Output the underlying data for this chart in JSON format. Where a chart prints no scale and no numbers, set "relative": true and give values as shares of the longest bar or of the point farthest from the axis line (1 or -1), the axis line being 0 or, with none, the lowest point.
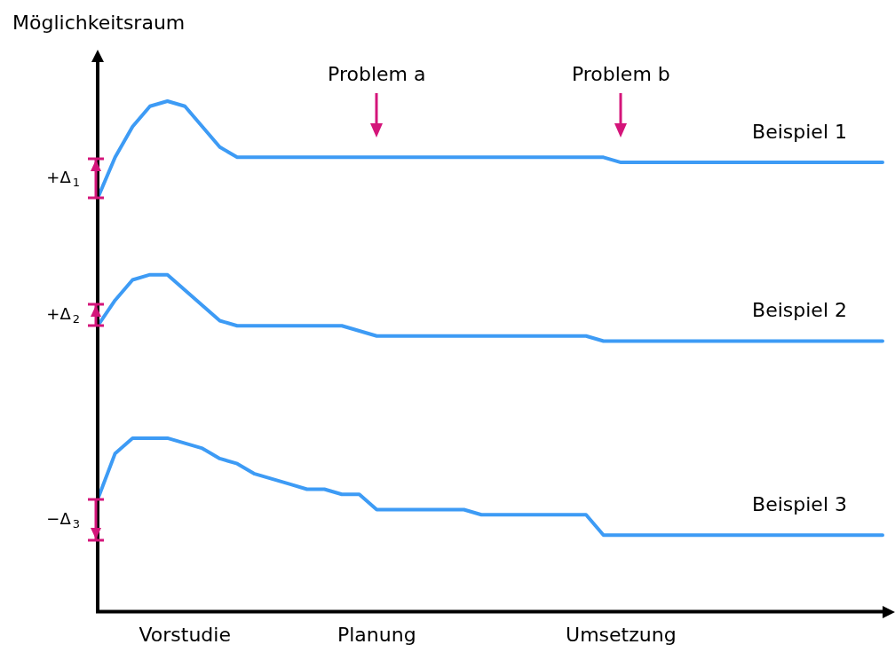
{
  "chart_data": {
    "type": "line",
    "relative": true,
    "ylabel": "Möglichkeitsraum",
    "categories": [
      null,
      null,
      null,
      null,
      null,
      "Vorstudie",
      null,
      null,
      null,
      null,
      null,
      null,
      null,
      null,
      null,
      null,
      "Planung",
      null,
      null,
      null,
      null,
      null,
      null,
      null,
      null,
      null,
      null,
      null,
      null,
      null,
      "Umsetzung",
      null,
      null,
      null,
      null,
      null,
      null,
      null,
      null,
      null,
      null,
      null,
      null,
      null,
      null,
      null
    ],
    "tick_labels": "x",
    "marker": "none",
    "line_style": "solid",
    "series": [
      {
        "name": "Beispiel 1",
        "color": "#3d9bf5",
        "values": [
          0.81,
          0.89,
          0.95,
          0.99,
          1,
          0.99,
          0.95,
          0.91,
          0.89,
          0.89,
          0.89,
          0.89,
          0.89,
          0.89,
          0.89,
          0.89,
          0.89,
          0.89,
          0.89,
          0.89,
          0.89,
          0.89,
          0.89,
          0.89,
          0.89,
          0.89,
          0.89,
          0.89,
          0.89,
          0.89,
          0.88,
          0.88,
          0.88,
          0.88,
          0.88,
          0.88,
          0.88,
          0.88,
          0.88,
          0.88,
          0.88,
          0.88,
          0.88,
          0.88,
          0.88,
          0.88
        ]
      },
      {
        "name": "Beispiel 2",
        "color": "#3d9bf5",
        "values": [
          0.56,
          0.61,
          0.65,
          0.66,
          0.66,
          0.63,
          0.6,
          0.57,
          0.56,
          0.56,
          0.56,
          0.56,
          0.56,
          0.56,
          0.56,
          0.55,
          0.54,
          0.54,
          0.54,
          0.54,
          0.54,
          0.54,
          0.54,
          0.54,
          0.54,
          0.54,
          0.54,
          0.54,
          0.54,
          0.53,
          0.53,
          0.53,
          0.53,
          0.53,
          0.53,
          0.53,
          0.53,
          0.53,
          0.53,
          0.53,
          0.53,
          0.53,
          0.53,
          0.53,
          0.53,
          0.53
        ]
      },
      {
        "name": "Beispiel 3",
        "color": "#3d9bf5",
        "values": [
          0.22,
          0.31,
          0.34,
          0.34,
          0.34,
          0.33,
          0.32,
          0.3,
          0.29,
          0.27,
          0.26,
          0.25,
          0.24,
          0.24,
          0.23,
          0.23,
          0.2,
          0.2,
          0.2,
          0.2,
          0.2,
          0.2,
          0.19,
          0.19,
          0.19,
          0.19,
          0.19,
          0.19,
          0.19,
          0.15,
          0.15,
          0.15,
          0.15,
          0.15,
          0.15,
          0.15,
          0.15,
          0.15,
          0.15,
          0.15,
          0.15,
          0.15,
          0.15,
          0.15,
          0.15,
          0.15
        ]
      }
    ],
    "annotations": [
      "+Δ$_{1}$",
      "+Δ$_{2}$",
      "−Δ$_{3}$",
      {
        "text": "Problem a",
        "x": "Planung"
      },
      {
        "text": "Problem b",
        "x": "Umsetzung"
      }
    ]
  }
}
